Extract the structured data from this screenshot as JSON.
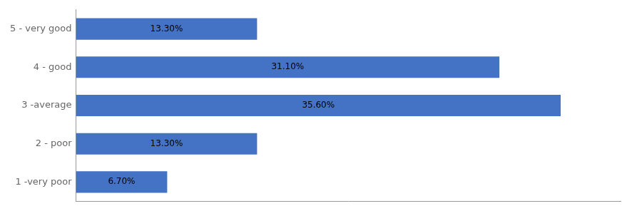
{
  "chart_data": {
    "type": "bar",
    "orientation": "horizontal",
    "categories": [
      "1 -very poor",
      "2 - poor",
      "3 -average",
      "4 - good",
      "5 - very good"
    ],
    "values": [
      6.7,
      13.3,
      35.6,
      31.1,
      13.3
    ],
    "value_labels": [
      "6.70%",
      "13.30%",
      "35.60%",
      "31.10%",
      "13.30%"
    ],
    "data_labels": true,
    "color": "#4472C4",
    "xlim": [
      0,
      40
    ],
    "tick_labels": "y",
    "grid": false
  }
}
